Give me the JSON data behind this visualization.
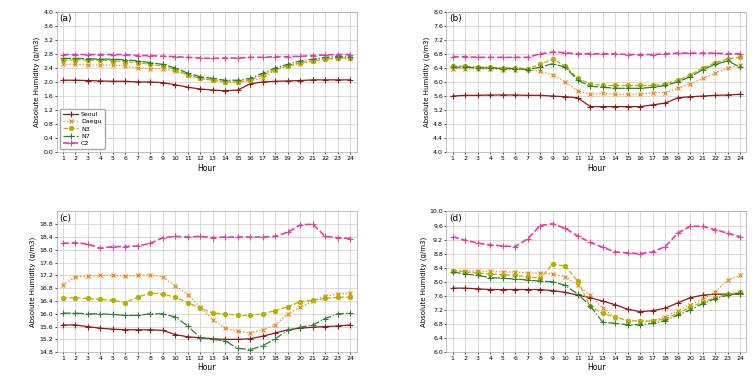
{
  "hours": [
    1,
    2,
    3,
    4,
    5,
    6,
    7,
    8,
    9,
    10,
    11,
    12,
    13,
    14,
    15,
    16,
    17,
    18,
    19,
    20,
    21,
    22,
    23,
    24
  ],
  "series_names": [
    "Seoul",
    "Daegu",
    "N3",
    "N7",
    "C2"
  ],
  "colors": [
    "#8B1A1A",
    "#E8820A",
    "#B8B000",
    "#2E7D32",
    "#E040A0"
  ],
  "linestyles": [
    "-",
    ":",
    "--",
    "-.",
    "--"
  ],
  "markers": [
    "+",
    "x",
    "o",
    "+",
    "+"
  ],
  "markersizes": [
    4,
    3,
    3,
    4,
    4
  ],
  "linewidths": [
    0.9,
    0.9,
    0.9,
    0.9,
    1.2
  ],
  "winter": {
    "Seoul": [
      2.05,
      2.05,
      2.04,
      2.03,
      2.02,
      2.02,
      2.0,
      2.0,
      1.98,
      1.92,
      1.85,
      1.8,
      1.77,
      1.75,
      1.77,
      1.95,
      2.0,
      2.02,
      2.03,
      2.04,
      2.06,
      2.06,
      2.06,
      2.06
    ],
    "Daegu": [
      2.5,
      2.5,
      2.48,
      2.48,
      2.48,
      2.45,
      2.4,
      2.38,
      2.38,
      2.3,
      2.2,
      2.1,
      2.05,
      2.0,
      2.0,
      2.05,
      2.1,
      2.35,
      2.45,
      2.5,
      2.6,
      2.65,
      2.67,
      2.67
    ],
    "N3": [
      2.62,
      2.63,
      2.62,
      2.62,
      2.6,
      2.58,
      2.55,
      2.5,
      2.45,
      2.35,
      2.2,
      2.1,
      2.05,
      2.0,
      2.0,
      2.05,
      2.2,
      2.35,
      2.45,
      2.55,
      2.6,
      2.65,
      2.68,
      2.68
    ],
    "N7": [
      2.67,
      2.67,
      2.66,
      2.65,
      2.65,
      2.63,
      2.6,
      2.55,
      2.5,
      2.4,
      2.25,
      2.15,
      2.1,
      2.05,
      2.05,
      2.1,
      2.25,
      2.4,
      2.5,
      2.6,
      2.65,
      2.7,
      2.72,
      2.72
    ],
    "C2": [
      2.78,
      2.78,
      2.78,
      2.78,
      2.78,
      2.78,
      2.75,
      2.75,
      2.73,
      2.72,
      2.7,
      2.68,
      2.67,
      2.68,
      2.68,
      2.7,
      2.7,
      2.72,
      2.72,
      2.73,
      2.75,
      2.77,
      2.78,
      2.78
    ]
  },
  "winter_ylim": [
    0.0,
    4.0
  ],
  "winter_yticks": [
    0.0,
    0.4,
    0.8,
    1.2,
    1.6,
    2.0,
    2.4,
    2.8,
    3.2,
    3.6,
    4.0
  ],
  "spring": {
    "Seoul": [
      5.6,
      5.62,
      5.62,
      5.63,
      5.63,
      5.63,
      5.62,
      5.62,
      5.6,
      5.58,
      5.55,
      5.3,
      5.3,
      5.3,
      5.3,
      5.3,
      5.35,
      5.4,
      5.55,
      5.58,
      5.6,
      5.62,
      5.63,
      5.65
    ],
    "Daegu": [
      6.38,
      6.38,
      6.37,
      6.37,
      6.35,
      6.35,
      6.35,
      6.3,
      6.2,
      6.0,
      5.75,
      5.65,
      5.68,
      5.65,
      5.65,
      5.65,
      5.7,
      5.7,
      5.82,
      5.95,
      6.1,
      6.25,
      6.4,
      6.48
    ],
    "N3": [
      6.45,
      6.45,
      6.42,
      6.42,
      6.4,
      6.4,
      6.38,
      6.5,
      6.65,
      6.45,
      6.1,
      5.95,
      5.9,
      5.9,
      5.9,
      5.9,
      5.9,
      5.95,
      6.05,
      6.2,
      6.4,
      6.55,
      6.65,
      6.7
    ],
    "N7": [
      6.42,
      6.42,
      6.4,
      6.4,
      6.38,
      6.38,
      6.35,
      6.42,
      6.52,
      6.42,
      6.05,
      5.88,
      5.85,
      5.82,
      5.82,
      5.82,
      5.85,
      5.9,
      6.0,
      6.15,
      6.35,
      6.5,
      6.6,
      6.42
    ],
    "C2": [
      6.72,
      6.72,
      6.7,
      6.7,
      6.7,
      6.7,
      6.7,
      6.8,
      6.85,
      6.83,
      6.8,
      6.8,
      6.8,
      6.8,
      6.78,
      6.78,
      6.78,
      6.8,
      6.82,
      6.82,
      6.82,
      6.82,
      6.8,
      6.8
    ]
  },
  "spring_ylim": [
    4.0,
    8.0
  ],
  "spring_yticks": [
    4.0,
    4.4,
    4.8,
    5.2,
    5.6,
    6.0,
    6.4,
    6.8,
    7.2,
    7.6,
    8.0
  ],
  "summer": {
    "Seoul": [
      15.65,
      15.65,
      15.6,
      15.55,
      15.52,
      15.5,
      15.5,
      15.5,
      15.48,
      15.35,
      15.28,
      15.25,
      15.22,
      15.2,
      15.2,
      15.22,
      15.3,
      15.4,
      15.5,
      15.55,
      15.58,
      15.6,
      15.62,
      15.65
    ],
    "Daegu": [
      16.9,
      17.15,
      17.18,
      17.2,
      17.2,
      17.18,
      17.2,
      17.22,
      17.15,
      16.88,
      16.6,
      16.2,
      15.82,
      15.55,
      15.45,
      15.4,
      15.5,
      15.65,
      16.0,
      16.2,
      16.4,
      16.55,
      16.62,
      16.65
    ],
    "N3": [
      16.5,
      16.5,
      16.48,
      16.45,
      16.42,
      16.35,
      16.52,
      16.65,
      16.62,
      16.52,
      16.35,
      16.18,
      16.02,
      16.0,
      15.95,
      15.95,
      16.0,
      16.1,
      16.22,
      16.38,
      16.42,
      16.48,
      16.52,
      16.52
    ],
    "N7": [
      16.02,
      16.02,
      16.0,
      16.0,
      15.98,
      15.95,
      15.95,
      16.0,
      16.0,
      15.9,
      15.62,
      15.25,
      15.2,
      15.15,
      14.92,
      14.88,
      15.0,
      15.22,
      15.48,
      15.58,
      15.65,
      15.85,
      16.0,
      16.02
    ],
    "C2": [
      18.2,
      18.22,
      18.18,
      18.05,
      18.1,
      18.1,
      18.12,
      18.2,
      18.38,
      18.42,
      18.4,
      18.42,
      18.38,
      18.4,
      18.4,
      18.4,
      18.4,
      18.42,
      18.55,
      18.78,
      18.8,
      18.42,
      18.38,
      18.35
    ]
  },
  "summer_ylim": [
    14.8,
    19.2
  ],
  "summer_yticks": [
    14.8,
    15.2,
    15.6,
    16.0,
    16.4,
    16.8,
    17.2,
    17.6,
    18.0,
    18.4,
    18.8
  ],
  "fall": {
    "Seoul": [
      7.82,
      7.82,
      7.8,
      7.78,
      7.78,
      7.78,
      7.78,
      7.78,
      7.75,
      7.7,
      7.62,
      7.55,
      7.45,
      7.35,
      7.22,
      7.15,
      7.18,
      7.25,
      7.4,
      7.55,
      7.62,
      7.65,
      7.65,
      7.65
    ],
    "Daegu": [
      8.32,
      8.32,
      8.3,
      8.3,
      8.28,
      8.28,
      8.25,
      8.25,
      8.22,
      8.15,
      7.9,
      7.62,
      7.25,
      6.98,
      6.9,
      6.88,
      6.9,
      7.0,
      7.18,
      7.35,
      7.5,
      7.72,
      8.05,
      8.18
    ],
    "N3": [
      8.32,
      8.28,
      8.25,
      8.22,
      8.2,
      8.18,
      8.15,
      8.1,
      8.5,
      8.45,
      8.02,
      7.3,
      7.1,
      7.0,
      6.9,
      6.88,
      6.88,
      6.95,
      7.1,
      7.28,
      7.42,
      7.55,
      7.65,
      7.7
    ],
    "N7": [
      8.28,
      8.22,
      8.18,
      8.12,
      8.1,
      8.08,
      8.05,
      8.02,
      8.0,
      7.9,
      7.65,
      7.32,
      6.85,
      6.82,
      6.78,
      6.78,
      6.82,
      6.9,
      7.05,
      7.2,
      7.38,
      7.52,
      7.62,
      7.68
    ],
    "C2": [
      9.28,
      9.18,
      9.1,
      9.05,
      9.02,
      9.0,
      9.22,
      9.6,
      9.65,
      9.52,
      9.3,
      9.12,
      8.98,
      8.85,
      8.82,
      8.8,
      8.85,
      9.0,
      9.38,
      9.58,
      9.58,
      9.48,
      9.38,
      9.28
    ]
  },
  "fall_ylim": [
    6.0,
    10.0
  ],
  "fall_yticks": [
    6.0,
    6.4,
    6.8,
    7.2,
    7.6,
    8.0,
    8.4,
    8.8,
    9.2,
    9.6,
    10.0
  ],
  "panel_labels": [
    "(a)",
    "(b)",
    "(c)",
    "(d)"
  ],
  "xlabel": "Hour",
  "ylabel": "Absolute Humidity (g/m3)",
  "grid_color": "#cccccc",
  "bg_color": "#ffffff"
}
